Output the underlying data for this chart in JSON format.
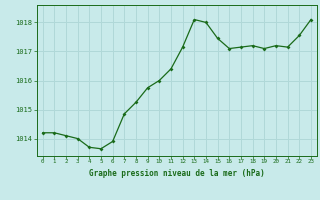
{
  "x": [
    0,
    1,
    2,
    3,
    4,
    5,
    6,
    7,
    8,
    9,
    10,
    11,
    12,
    13,
    14,
    15,
    16,
    17,
    18,
    19,
    20,
    21,
    22,
    23
  ],
  "y": [
    1014.2,
    1014.2,
    1014.1,
    1014.0,
    1013.7,
    1013.65,
    1013.9,
    1014.85,
    1015.25,
    1015.75,
    1016.0,
    1016.4,
    1017.15,
    1018.1,
    1018.0,
    1017.45,
    1017.1,
    1017.15,
    1017.2,
    1017.1,
    1017.2,
    1017.15,
    1017.55,
    1018.1
  ],
  "line_color": "#1a6b1a",
  "marker_color": "#1a6b1a",
  "bg_color": "#c8eaea",
  "grid_color": "#b0d8d8",
  "xlabel": "Graphe pression niveau de la mer (hPa)",
  "xlabel_color": "#1a6b1a",
  "tick_color": "#1a6b1a",
  "ylim": [
    1013.4,
    1018.6
  ],
  "yticks": [
    1014,
    1015,
    1016,
    1017,
    1018
  ],
  "xticks": [
    0,
    1,
    2,
    3,
    4,
    5,
    6,
    7,
    8,
    9,
    10,
    11,
    12,
    13,
    14,
    15,
    16,
    17,
    18,
    19,
    20,
    21,
    22,
    23
  ],
  "xlim": [
    -0.5,
    23.5
  ]
}
